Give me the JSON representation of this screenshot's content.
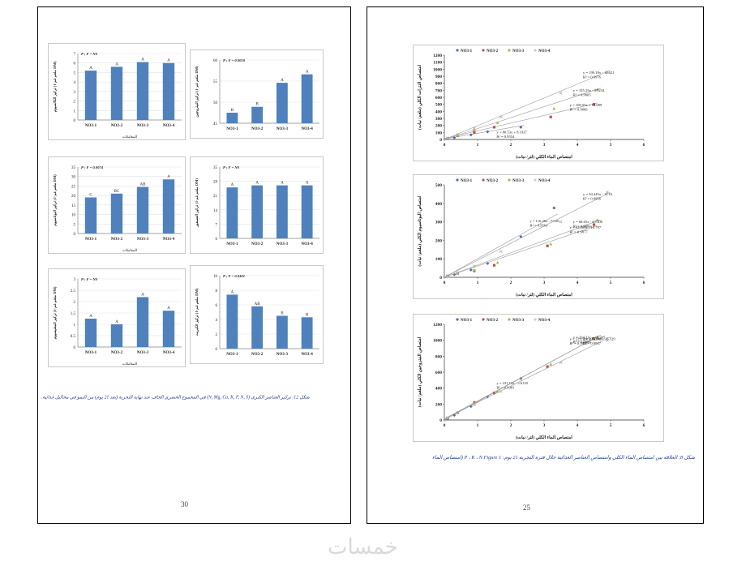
{
  "left_page": {
    "number": "30",
    "caption": "شكل 12: تركيز العناصر الكبرى (N, Mg, Ca, K, P, N, S) في المجموع الخضري الجاف عند نهاية التجربة (بعد 21 يوم) من النمو في محاليل غذائية.",
    "bar_charts": [
      {
        "annotation": "P ; F = NS",
        "ylabel": "تركيز الكالسيوم (ملغم غم-1 DM)",
        "xlabel": "المعاملات",
        "ylim": [
          0,
          7
        ],
        "ticks": [
          "0",
          "1",
          "2",
          "3",
          "4",
          "5",
          "6",
          "7"
        ],
        "categories": [
          "NO3-1",
          "NO3-2",
          "NO3-3",
          "NO3-4"
        ],
        "values": [
          5.2,
          5.6,
          6.1,
          6.0
        ],
        "letters": [
          "A",
          "A",
          "A",
          "A"
        ]
      },
      {
        "annotation": "P ; F = 0.0010",
        "ylabel": "تركيز النيتروجين (ملغم غم-1 DM)",
        "xlabel": "",
        "ylim": [
          45,
          60
        ],
        "ticks": [
          "45",
          "50",
          "55",
          "60"
        ],
        "categories": [
          "NO3-1",
          "NO3-2",
          "NO3-3",
          "NO3-4"
        ],
        "values": [
          47.5,
          48.9,
          54.6,
          56.6
        ],
        "letters": [
          "B",
          "B",
          "A",
          "A"
        ]
      },
      {
        "annotation": "P ; F = 0.0074",
        "ylabel": "تركيز البوتاسيوم (ملغم غم-1 DM)",
        "xlabel": "المعاملات",
        "ylim": [
          0,
          35
        ],
        "ticks": [
          "0",
          "5",
          "10",
          "15",
          "20",
          "25",
          "30",
          "35"
        ],
        "categories": [
          "NO3-1",
          "NO3-2",
          "NO3-3",
          "NO3-4"
        ],
        "values": [
          19,
          21,
          24.5,
          28.5
        ],
        "letters": [
          "C",
          "BC",
          "AB",
          "A"
        ]
      },
      {
        "annotation": "P ; F = NS",
        "ylabel": "تركيز الفسفور (ملغم غم-1 DM)",
        "xlabel": "",
        "ylim": [
          0,
          35
        ],
        "ticks": [
          "0",
          "7",
          "14",
          "21",
          "28",
          "35"
        ],
        "categories": [
          "NO3-1",
          "NO3-2",
          "NO3-3",
          "NO3-4"
        ],
        "values": [
          25,
          26,
          26,
          26
        ],
        "letters": [
          "A",
          "A",
          "A",
          "A"
        ]
      },
      {
        "annotation": "P ; F = NS",
        "ylabel": "تركيز المغنيسيوم (ملغم غم-1 DM)",
        "xlabel": "المعاملات",
        "ylim": [
          0,
          3
        ],
        "ticks": [
          "0",
          "0.5",
          "1",
          "1.5",
          "2",
          "2.5",
          "3"
        ],
        "categories": [
          "NO3-1",
          "NO3-2",
          "NO3-3",
          "NO3-4"
        ],
        "values": [
          1.25,
          1.0,
          2.2,
          1.6
        ],
        "letters": [
          "A",
          "A",
          "A",
          "A"
        ]
      },
      {
        "annotation": "P ; F = 0.0401",
        "ylabel": "تركيز الكبريت (ملغم غم-1 DM)",
        "xlabel": "",
        "ylim": [
          0,
          10
        ],
        "ticks": [
          "0",
          "2",
          "4",
          "6",
          "8",
          "10"
        ],
        "categories": [
          "NO3-1",
          "NO3-2",
          "NO3-3",
          "NO3-4"
        ],
        "values": [
          7.4,
          5.8,
          4.5,
          4.3
        ],
        "letters": [
          "A",
          "AB",
          "B",
          "B"
        ]
      }
    ]
  },
  "right_page": {
    "number": "25",
    "caption": "شكل 8: العلاقة بين امتصاص الماء الكلي وامتصاص العناصر الغذائية خلال فترة التجربة 21 يوم: P ، K ، N Figure 1 (امتصاص الماء",
    "legend": [
      "NO3-1",
      "NO3-2",
      "NO3-3",
      "NO3-4"
    ],
    "series_colors": [
      "#4a6fb5",
      "#c0504d",
      "#9bbb59",
      "#d0d0d0"
    ],
    "xlabel": "امتصاص الماء الكلي (لتر/ نبات)",
    "scatter_charts": [
      {
        "ylabel": "امتصاص النترات الكلي (ملغم/ نبات)",
        "ylim": [
          0,
          1200
        ],
        "xlim": [
          0,
          6
        ],
        "yticks": [
          "0",
          "100",
          "200",
          "300",
          "400",
          "500",
          "600",
          "700",
          "800",
          "900",
          "1000",
          "1100",
          "1200"
        ],
        "xticks": [
          "0",
          "1",
          "2",
          "3",
          "4",
          "5",
          "6"
        ],
        "series": [
          {
            "name": "NO3-1",
            "x": [
              0.1,
              0.3,
              0.8,
              1.3,
              2.3
            ],
            "y": [
              8,
              25,
              65,
              110,
              175
            ],
            "eq": "y = 80.53x + 8.1937",
            "r2": "R² = 0.9554"
          },
          {
            "name": "NO3-2",
            "x": [
              0.1,
              0.4,
              0.9,
              1.5,
              3.2,
              4.5
            ],
            "y": [
              15,
              55,
              100,
              175,
              320,
              500
            ],
            "eq": "y = 109.55x + 13.089",
            "r2": "R² = 0.9866"
          },
          {
            "name": "NO3-3",
            "x": [
              0.1,
              0.4,
              0.9,
              1.6,
              3.3,
              4.6
            ],
            "y": [
              20,
              60,
              135,
              240,
              440,
              710
            ],
            "eq": "y = 155.35x - 0.7234",
            "r2": "R² = 0.9905"
          },
          {
            "name": "NO3-4",
            "x": [
              0.1,
              0.4,
              0.9,
              1.7,
              3.5,
              4.9
            ],
            "y": [
              20,
              70,
              160,
              320,
              660,
              960
            ],
            "eq": "y = 199.18x - 12.621",
            "r2": "R² = 0.9976"
          }
        ]
      },
      {
        "ylabel": "امتصاص البوتاسيوم الكلي (ملغم/ نبات)",
        "ylim": [
          0,
          500
        ],
        "xlim": [
          0,
          6
        ],
        "yticks": [
          "0",
          "100",
          "200",
          "300",
          "400",
          "500"
        ],
        "xticks": [
          "0",
          "1",
          "2",
          "3",
          "4",
          "5",
          "6"
        ],
        "series": [
          {
            "name": "NO3-1",
            "x": [
              0.1,
              0.3,
              0.8,
              1.3,
              2.3,
              3.3
            ],
            "y": [
              5,
              15,
              40,
              75,
              220,
              375
            ],
            "eq": "y = 116.26x - 53.06",
            "r2": "R² = 0.9564"
          },
          {
            "name": "NO3-2",
            "x": [
              0.1,
              0.4,
              0.9,
              1.5,
              3.1,
              4.5
            ],
            "y": [
              5,
              20,
              35,
              65,
              170,
              285
            ],
            "eq": "y = 63.209x - 10.797",
            "r2": "R² = 0.9877"
          },
          {
            "name": "NO3-3",
            "x": [
              0.1,
              0.4,
              0.9,
              1.6,
              3.2,
              4.6
            ],
            "y": [
              5,
              20,
              40,
              80,
              180,
              310
            ],
            "eq": "y = 68.05x - 8.1308",
            "r2": "R² = 0.9884"
          },
          {
            "name": "NO3-4",
            "x": [
              0.1,
              0.4,
              0.9,
              1.7,
              3.5,
              4.9
            ],
            "y": [
              10,
              25,
              60,
              140,
              300,
              460
            ],
            "eq": "y = 94.445x - 11.16",
            "r2": "R² = 0.9956"
          }
        ]
      },
      {
        "ylabel": "امتصاص النيتروجين الكلي (ملغم/ نبات)",
        "ylim": [
          0,
          1200
        ],
        "xlim": [
          0,
          6
        ],
        "yticks": [
          "0",
          "200",
          "400",
          "600",
          "800",
          "1000",
          "1200"
        ],
        "xticks": [
          "0",
          "1",
          "2",
          "3",
          "4",
          "5",
          "6"
        ],
        "series": [
          {
            "name": "NO3-1",
            "x": [
              0.1,
              0.3,
              0.8,
              1.3,
              2.3
            ],
            "y": [
              15,
              60,
              170,
              290,
              520
            ],
            "eq": "y = 231.13x - 5.6118",
            "r2": "R² = 0.9981"
          },
          {
            "name": "NO3-2",
            "x": [
              0.1,
              0.4,
              0.9,
              1.5,
              3.1,
              4.5
            ],
            "y": [
              20,
              90,
              220,
              340,
              670,
              1020
            ],
            "eq": "y = 223.56x + 14.609",
            "r2": "R² = 0.9935"
          },
          {
            "name": "NO3-3",
            "x": [
              0.1,
              0.4,
              0.9,
              1.6,
              3.2,
              4.6
            ],
            "y": [
              25,
              95,
              210,
              360,
              700,
              1040
            ],
            "eq": "y = 224.32x + 10.365",
            "r2": "R² = 0.9984"
          },
          {
            "name": "NO3-4",
            "x": [
              0.1,
              0.4,
              0.9,
              1.7,
              3.5,
              4.9
            ],
            "y": [
              30,
              95,
              190,
              360,
              720,
              1000
            ],
            "eq": "y = 205.34x + 15.529",
            "r2": "R² = 0.9937"
          }
        ]
      }
    ]
  },
  "watermark": "خمسات"
}
